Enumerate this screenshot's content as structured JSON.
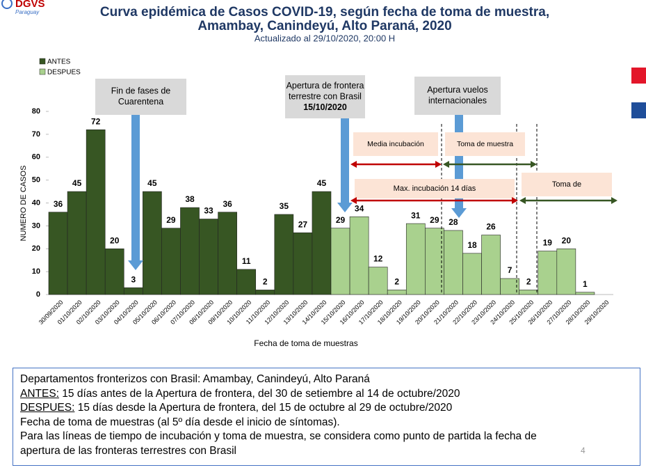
{
  "logo": "DGVS",
  "logo_sub": "Paraguay",
  "page_number": "4",
  "chart_data": {
    "type": "bar",
    "title": "Curva epidémica de Casos COVID-19, según fecha de toma de muestra,",
    "title_line2": "Amambay, Canindeyú, Alto Paraná, 2020",
    "subtitle": "Actualizado al 29/10/2020,  20:00 H",
    "y_label": "NUMERO DE CASOS",
    "x_label": "Fecha de toma de muestras",
    "categories": [
      "30/09/2020",
      "01/10/2020",
      "02/10/2020",
      "03/10/2020",
      "04/10/2020",
      "05/10/2020",
      "06/10/2020",
      "07/10/2020",
      "08/10/2020",
      "09/10/2020",
      "10/10/2020",
      "11/10/2020",
      "12/10/2020",
      "13/10/2020",
      "14/10/2020",
      "15/10/2020",
      "16/10/2020",
      "17/10/2020",
      "18/10/2020",
      "19/10/2020",
      "20/10/2020",
      "21/10/2020",
      "22/10/2020",
      "23/10/2020",
      "24/10/2020",
      "25/10/2020",
      "26/10/2020",
      "27/10/2020",
      "28/10/2020",
      "29/10/2020"
    ],
    "series": [
      {
        "name": "ANTES",
        "color": "#375623",
        "values": [
          36,
          45,
          72,
          20,
          3,
          45,
          29,
          38,
          33,
          36,
          11,
          2,
          35,
          27,
          45,
          null,
          null,
          null,
          null,
          null,
          null,
          null,
          null,
          null,
          null,
          null,
          null,
          null,
          null,
          null
        ]
      },
      {
        "name": "DESPUES",
        "color": "#a9d18e",
        "values": [
          null,
          null,
          null,
          null,
          null,
          null,
          null,
          null,
          null,
          null,
          null,
          null,
          null,
          null,
          null,
          29,
          34,
          12,
          2,
          31,
          29,
          28,
          18,
          26,
          7,
          2,
          19,
          20,
          1,
          null
        ]
      }
    ],
    "ylim": [
      0,
      80
    ],
    "yticks": [
      0,
      10,
      20,
      30,
      40,
      50,
      60,
      70,
      80
    ],
    "legend": "top-left",
    "annotations": [
      {
        "lines": [
          "Fin de fases de",
          "Cuarentena"
        ]
      },
      {
        "lines": [
          "Apertura de frontera",
          "terrestre con Brasil"
        ],
        "bold": "15/10/2020"
      },
      {
        "lines": [
          "Apertura vuelos",
          "internacionales"
        ]
      },
      {
        "lines": [
          "Media incubación"
        ]
      },
      {
        "lines": [
          "Toma de muestra"
        ]
      },
      {
        "lines": [
          "Max. incubación 14 días"
        ]
      },
      {
        "lines": [
          "Toma de"
        ]
      }
    ]
  },
  "notes": [
    {
      "text": "Departamentos fronterizos con Brasil: Amambay, Canindeyú, Alto Paraná"
    },
    {
      "label": "ANTES:",
      "text": " 15 días antes de la Apertura de frontera, del  30 de setiembre al 14 de octubre/2020"
    },
    {
      "label": "DESPUES:",
      "text": " 15 días desde la Apertura de frontera, del 15 de octubre al 29 de octubre/2020"
    },
    {
      "text": "Fecha de toma de muestras (al 5º día desde el inicio de síntomas)."
    },
    {
      "text": "Para las líneas de tiempo de incubación y toma de muestra, se considera como punto de partida la fecha de"
    },
    {
      "text": "apertura de las fronteras terrestres con Brasil"
    }
  ]
}
